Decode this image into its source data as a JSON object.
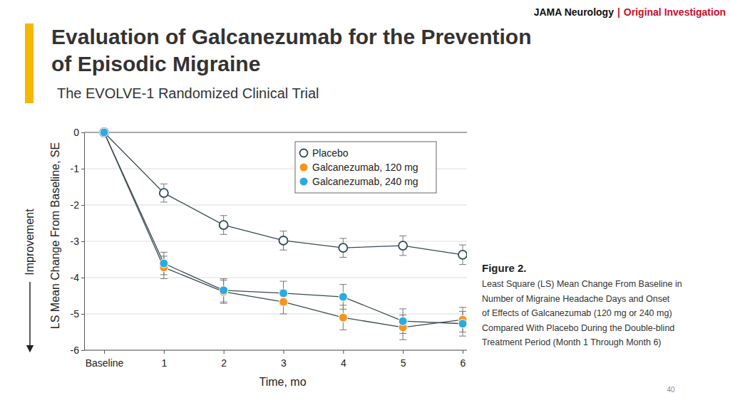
{
  "header": {
    "journal": "JAMA Neurology",
    "separator": "|",
    "section": "Original Investigation"
  },
  "caption": {
    "heading": "Figure 2.",
    "lines": [
      "Least Square (LS) Mean Change From Baseline in",
      "Number of Migraine Headache Days and Onset",
      "of Effects of Galcanezumab (120 mg or 240 mg)",
      "Compared With Placebo During the Double-blind",
      "Treatment Period (Month 1 Through Month 6)"
    ]
  },
  "page_number": 40,
  "chart_data": {
    "type": "line",
    "title": [
      "Evaluation of Galcanezumab for the Prevention",
      "of Episodic Migraine"
    ],
    "subtitle": "The EVOLVE-1 Randomized Clinical Trial",
    "x_label": "Time, mo",
    "y_label": "LS Mean Change From Baseline, SE",
    "annotations": [
      "Improvement"
    ],
    "categories": [
      "Baseline",
      "1",
      "2",
      "3",
      "4",
      "5",
      "6"
    ],
    "ylim": [
      0,
      -6
    ],
    "yticks": [
      0,
      -1,
      -2,
      -3,
      -4,
      -5,
      -6
    ],
    "grid": true,
    "legend": "upper right",
    "series": [
      {
        "name": "Placebo",
        "color": "#2f4a52",
        "marker": "open-circle",
        "values": [
          0,
          -1.67,
          -2.55,
          -2.98,
          -3.18,
          -3.12,
          -3.37
        ],
        "errors": [
          0,
          0.25,
          0.26,
          0.26,
          0.26,
          0.27,
          0.27
        ]
      },
      {
        "name": "Galcanezumab, 120 mg",
        "color": "#f7941d",
        "marker": "circle",
        "values": [
          0,
          -3.72,
          -4.39,
          -4.67,
          -5.1,
          -5.37,
          -5.16
        ],
        "errors": [
          0,
          0.31,
          0.32,
          0.33,
          0.34,
          0.34,
          0.34
        ]
      },
      {
        "name": "Galcanezumab, 240 mg",
        "color": "#29abe2",
        "marker": "circle",
        "values": [
          0,
          -3.61,
          -4.35,
          -4.43,
          -4.53,
          -5.2,
          -5.27
        ],
        "errors": [
          0,
          0.31,
          0.32,
          0.33,
          0.34,
          0.34,
          0.34
        ]
      }
    ]
  }
}
